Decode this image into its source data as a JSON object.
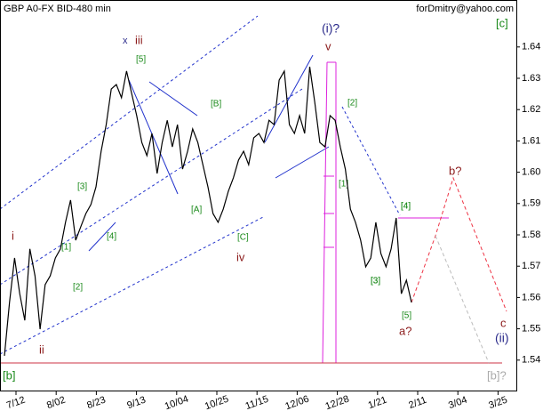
{
  "chart_data": {
    "type": "line",
    "title": "GBP A0-FX BID-480 min",
    "subtitle": "forDmitry@yahoo.com",
    "xtick_labels": [
      "7/12",
      "8/02",
      "8/23",
      "9/13",
      "10/04",
      "10/25",
      "11/15",
      "12/06",
      "12/28",
      "1/21",
      "2/11",
      "3/04",
      "3/25"
    ],
    "series": [
      {
        "color": "#000000",
        "values": [
          1.5414,
          1.5584,
          1.5726,
          1.5612,
          1.5527,
          1.5755,
          1.5669,
          1.5499,
          1.5641,
          1.5669,
          1.5726,
          1.5755,
          1.584,
          1.5911,
          1.5783,
          1.5826,
          1.5868,
          1.5897,
          1.5953,
          1.6067,
          1.6152,
          1.6266,
          1.628,
          1.6238,
          1.6323,
          1.6252,
          1.6181,
          1.6095,
          1.6053,
          1.6124,
          1.5996,
          1.6095,
          1.6166,
          1.6081,
          1.6152,
          1.601,
          1.6067,
          1.6138,
          1.6095,
          1.6024,
          1.5953,
          1.5868,
          1.584,
          1.5882,
          1.5939,
          1.5982,
          1.6039,
          1.6067,
          1.6024,
          1.611,
          1.6124,
          1.6095,
          1.6166,
          1.6152,
          1.6294,
          1.6323,
          1.6152,
          1.6124,
          1.6181,
          1.6124,
          1.6337,
          1.6223,
          1.6095,
          1.6081,
          1.6181,
          1.6166,
          1.6081,
          1.601,
          1.5882,
          1.584,
          1.5783,
          1.5698,
          1.5726,
          1.584,
          1.574,
          1.5698,
          1.5755,
          1.5854,
          1.5612,
          1.5655,
          1.5584
        ]
      }
    ],
    "ylim": [
      1.53,
      1.655
    ],
    "yticks": [
      1.54,
      1.55,
      1.56,
      1.57,
      1.58,
      1.59,
      {
        "value": 1.6,
        "label": "1.60"
      },
      1.61,
      1.62,
      1.63,
      1.64
    ],
    "annotations": [
      "[c]",
      "x",
      "iii",
      "[5]",
      "[B]",
      "(i)?",
      "v",
      "[2]",
      "[3]",
      "[4]",
      "[1]",
      "i",
      "ii",
      "[1]",
      "[2]",
      "[3]",
      "[4]",
      "[A]",
      "[C]",
      "iv",
      "[3]",
      "[4]",
      "[5]",
      "a?",
      "b?",
      "c",
      "(ii)",
      "[b]",
      "[b]?"
    ]
  }
}
